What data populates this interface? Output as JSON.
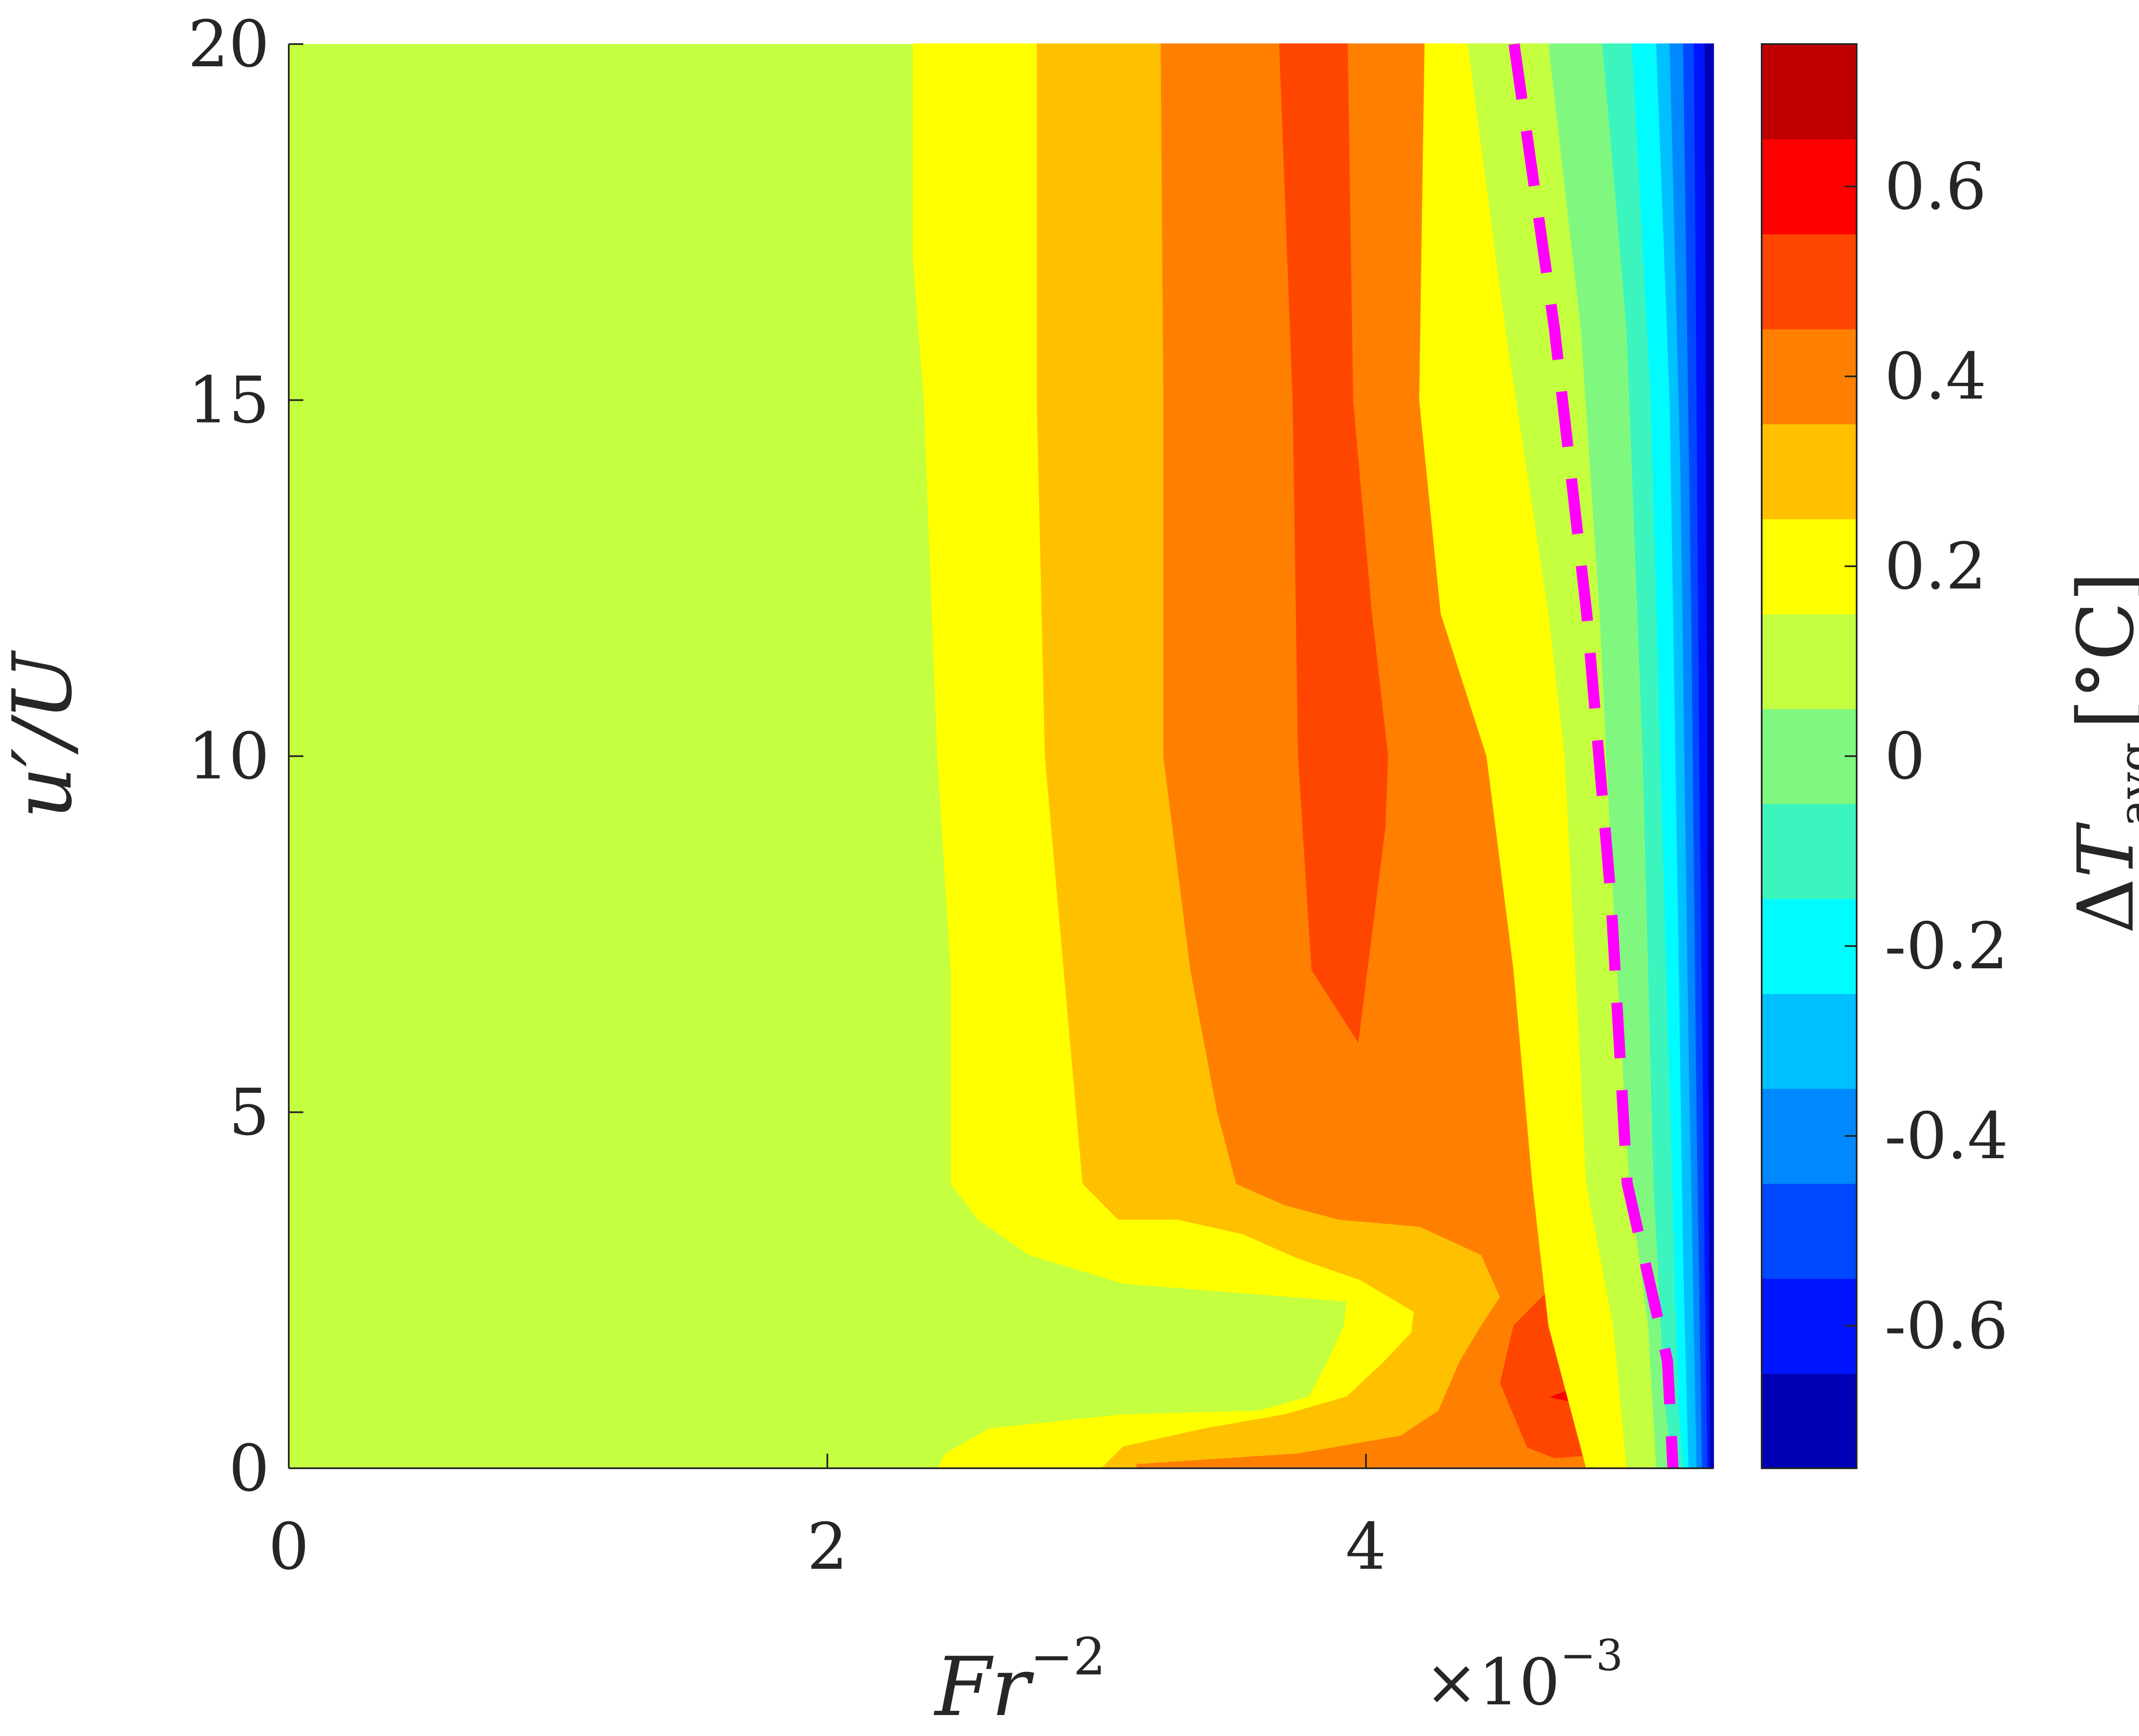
{
  "chart_data": {
    "type": "heatmap",
    "subtype": "filled-contour",
    "title": "",
    "xlabel": {
      "base": "Fr",
      "sup": "−2"
    },
    "ylabel": "u′/U",
    "x_exponent": {
      "base": "×10",
      "sup": "−3"
    },
    "xlim": [
      0,
      0.00529
    ],
    "ylim": [
      0,
      20
    ],
    "x_ticks": [
      0,
      0.002,
      0.004
    ],
    "x_tick_labels": [
      "0",
      "2",
      "4"
    ],
    "y_ticks": [
      0,
      5,
      10,
      15,
      20
    ],
    "y_tick_labels": [
      "0",
      "5",
      "10",
      "15",
      "20"
    ],
    "grid": false,
    "colorbar": {
      "label": {
        "prefix": "Δ",
        "var": "T",
        "sub": "avg",
        "unit": "[°C]"
      },
      "clim": [
        -0.75,
        0.75
      ],
      "tick_values": [
        0.6,
        0.4,
        0.2,
        0,
        -0.2,
        -0.4,
        -0.6
      ],
      "tick_labels": [
        "0.6",
        "0.4",
        "0.2",
        "0",
        "-0.2",
        "-0.4",
        "-0.6"
      ],
      "levels": [
        {
          "from": -0.75,
          "to": -0.65,
          "color": "#0000b4"
        },
        {
          "from": -0.65,
          "to": -0.55,
          "color": "#0015ff"
        },
        {
          "from": -0.55,
          "to": -0.45,
          "color": "#0048ff"
        },
        {
          "from": -0.45,
          "to": -0.35,
          "color": "#0088ff"
        },
        {
          "from": -0.35,
          "to": -0.25,
          "color": "#00c0ff"
        },
        {
          "from": -0.25,
          "to": -0.15,
          "color": "#00fcff"
        },
        {
          "from": -0.15,
          "to": -0.05,
          "color": "#3cf4bd"
        },
        {
          "from": -0.05,
          "to": 0.05,
          "color": "#80f880"
        },
        {
          "from": 0.05,
          "to": 0.15,
          "color": "#c4ff40"
        },
        {
          "from": 0.15,
          "to": 0.25,
          "color": "#ffff00"
        },
        {
          "from": 0.25,
          "to": 0.35,
          "color": "#ffc000"
        },
        {
          "from": 0.35,
          "to": 0.45,
          "color": "#ff8000"
        },
        {
          "from": 0.45,
          "to": 0.55,
          "color": "#ff4600"
        },
        {
          "from": 0.55,
          "to": 0.65,
          "color": "#ff0000"
        },
        {
          "from": 0.65,
          "to": 0.75,
          "color": "#c00000"
        },
        {
          "from": 0.75,
          "to": 0.85,
          "color": "#800000"
        }
      ]
    },
    "background_level_color": "#c4ff40",
    "regions": [
      {
        "level": 0.2,
        "color": "#ffff00",
        "points": [
          [
            0.00232,
            20
          ],
          [
            0.00232,
            17
          ],
          [
            0.00236,
            15
          ],
          [
            0.00241,
            10
          ],
          [
            0.00246,
            7
          ],
          [
            0.00246,
            4
          ],
          [
            0.00256,
            3.5
          ],
          [
            0.00275,
            3
          ],
          [
            0.0031,
            2.6
          ],
          [
            0.0036,
            2.45
          ],
          [
            0.00393,
            2.35
          ],
          [
            0.00392,
            2
          ],
          [
            0.00386,
            1.5
          ],
          [
            0.00379,
            1
          ],
          [
            0.0036,
            0.8
          ],
          [
            0.0031,
            0.75
          ],
          [
            0.0026,
            0.55
          ],
          [
            0.00244,
            0.2
          ],
          [
            0.00241,
            0
          ],
          [
            0.00529,
            0
          ],
          [
            0.00529,
            20
          ]
        ]
      },
      {
        "level": 0.3,
        "color": "#ffc000",
        "points": [
          [
            0.00278,
            20
          ],
          [
            0.00278,
            15
          ],
          [
            0.00281,
            10
          ],
          [
            0.00288,
            7
          ],
          [
            0.00295,
            4
          ],
          [
            0.00308,
            3.5
          ],
          [
            0.0033,
            3.5
          ],
          [
            0.00354,
            3.3
          ],
          [
            0.00375,
            2.95
          ],
          [
            0.00398,
            2.65
          ],
          [
            0.00418,
            2.2
          ],
          [
            0.00417,
            1.9
          ],
          [
            0.00407,
            1.5
          ],
          [
            0.00393,
            1
          ],
          [
            0.0037,
            0.75
          ],
          [
            0.0034,
            0.55
          ],
          [
            0.0031,
            0.3
          ],
          [
            0.00302,
            0
          ],
          [
            0.00529,
            0
          ],
          [
            0.00529,
            20
          ]
        ]
      },
      {
        "level": 0.4,
        "color": "#ff8000",
        "points": [
          [
            0.00324,
            20
          ],
          [
            0.00325,
            15
          ],
          [
            0.00325,
            10
          ],
          [
            0.00335,
            7
          ],
          [
            0.00345,
            5
          ],
          [
            0.00352,
            4
          ],
          [
            0.0037,
            3.7
          ],
          [
            0.0039,
            3.5
          ],
          [
            0.0042,
            3.4
          ],
          [
            0.00443,
            3
          ],
          [
            0.0045,
            2.4
          ],
          [
            0.00443,
            2
          ],
          [
            0.00435,
            1.5
          ],
          [
            0.00427,
            0.8
          ],
          [
            0.00413,
            0.45
          ],
          [
            0.00375,
            0.2
          ],
          [
            0.00315,
            0.05
          ],
          [
            0.00315,
            0
          ],
          [
            0.00529,
            0
          ],
          [
            0.00529,
            20
          ]
        ]
      },
      {
        "level": 0.5,
        "color": "#ff4600",
        "points": [
          [
            0.00368,
            20
          ],
          [
            0.00373,
            15
          ],
          [
            0.00375,
            10
          ],
          [
            0.0038,
            7
          ],
          [
            0.00397,
            6
          ],
          [
            0.00407,
            9
          ],
          [
            0.00408,
            10
          ],
          [
            0.00402,
            12
          ],
          [
            0.00395,
            15
          ],
          [
            0.00393,
            20
          ]
        ]
      },
      {
        "level": 0.5,
        "color": "#ff4600",
        "points": [
          [
            0.00473,
            2.8
          ],
          [
            0.00468,
            2.5
          ],
          [
            0.00455,
            2
          ],
          [
            0.0045,
            1.2
          ],
          [
            0.0046,
            0.3
          ],
          [
            0.0047,
            0.15
          ],
          [
            0.00488,
            0.2
          ],
          [
            0.0049,
            0.8
          ],
          [
            0.00489,
            1.8
          ],
          [
            0.00487,
            2.8
          ]
        ]
      },
      {
        "level": 0.6,
        "color": "#ff0000",
        "points": [
          [
            0.00469,
            1
          ],
          [
            0.00487,
            0.85
          ],
          [
            0.00489,
            1.3
          ]
        ]
      },
      {
        "level": 0.2,
        "color": "#ffff00",
        "points": [
          [
            0.00422,
            20
          ],
          [
            0.0042,
            15
          ],
          [
            0.00428,
            12
          ],
          [
            0.00445,
            10
          ],
          [
            0.00455,
            7
          ],
          [
            0.00462,
            4
          ],
          [
            0.00468,
            2
          ],
          [
            0.00482,
            0
          ],
          [
            0.00529,
            0
          ],
          [
            0.00529,
            20
          ]
        ]
      },
      {
        "level": 0.1,
        "color": "#c4ff40",
        "points": [
          [
            0.00438,
            20
          ],
          [
            0.00452,
            16
          ],
          [
            0.00468,
            12
          ],
          [
            0.00474,
            10
          ],
          [
            0.00478,
            7
          ],
          [
            0.00482,
            4
          ],
          [
            0.00492,
            2
          ],
          [
            0.00497,
            0
          ],
          [
            0.00529,
            0
          ],
          [
            0.00529,
            20
          ]
        ]
      },
      {
        "level": 0.0,
        "color": "#80f880",
        "points": [
          [
            0.00468,
            20
          ],
          [
            0.0048,
            16
          ],
          [
            0.00487,
            12
          ],
          [
            0.00492,
            8
          ],
          [
            0.00498,
            4
          ],
          [
            0.00505,
            2
          ],
          [
            0.00508,
            0
          ],
          [
            0.00529,
            0
          ],
          [
            0.00529,
            20
          ]
        ]
      },
      {
        "level": -0.1,
        "color": "#3cf4bd",
        "points": [
          [
            0.00488,
            20
          ],
          [
            0.00497,
            16
          ],
          [
            0.00503,
            10
          ],
          [
            0.00507,
            4
          ],
          [
            0.00511,
            1
          ],
          [
            0.00514,
            0
          ],
          [
            0.00529,
            0
          ],
          [
            0.00529,
            20
          ]
        ]
      },
      {
        "level": -0.2,
        "color": "#00fcff",
        "points": [
          [
            0.00499,
            20
          ],
          [
            0.00506,
            15
          ],
          [
            0.00511,
            8
          ],
          [
            0.00514,
            4
          ],
          [
            0.00516,
            1
          ],
          [
            0.00518,
            0
          ],
          [
            0.00529,
            0
          ],
          [
            0.00529,
            20
          ]
        ]
      },
      {
        "level": -0.3,
        "color": "#00c0ff",
        "points": [
          [
            0.00508,
            20
          ],
          [
            0.00513,
            15
          ],
          [
            0.00516,
            8
          ],
          [
            0.00518,
            3
          ],
          [
            0.0052,
            0
          ],
          [
            0.00529,
            0
          ],
          [
            0.00529,
            20
          ]
        ]
      },
      {
        "level": -0.4,
        "color": "#0088ff",
        "points": [
          [
            0.00513,
            20
          ],
          [
            0.00517,
            14
          ],
          [
            0.0052,
            6
          ],
          [
            0.00522,
            2
          ],
          [
            0.00523,
            0
          ],
          [
            0.00529,
            0
          ],
          [
            0.00529,
            20
          ]
        ]
      },
      {
        "level": -0.5,
        "color": "#0048ff",
        "points": [
          [
            0.00518,
            20
          ],
          [
            0.00521,
            12
          ],
          [
            0.00523,
            5
          ],
          [
            0.00525,
            0
          ],
          [
            0.00529,
            0
          ],
          [
            0.00529,
            20
          ]
        ]
      },
      {
        "level": -0.6,
        "color": "#0015ff",
        "points": [
          [
            0.00522,
            20
          ],
          [
            0.00524,
            10
          ],
          [
            0.00526,
            3
          ],
          [
            0.00527,
            0
          ],
          [
            0.00529,
            0
          ],
          [
            0.00529,
            20
          ]
        ]
      },
      {
        "level": -0.7,
        "color": "#0000b4",
        "points": [
          [
            0.00526,
            20
          ],
          [
            0.00527,
            10
          ],
          [
            0.00528,
            0
          ],
          [
            0.00529,
            0
          ],
          [
            0.00529,
            20
          ]
        ]
      }
    ],
    "dashed_line": {
      "color": "#ff00ff",
      "points": [
        [
          0.00455,
          20
        ],
        [
          0.0047,
          16
        ],
        [
          0.00482,
          12
        ],
        [
          0.00491,
          8
        ],
        [
          0.00497,
          4
        ],
        [
          0.00512,
          1.5
        ],
        [
          0.00514,
          0
        ]
      ]
    }
  }
}
